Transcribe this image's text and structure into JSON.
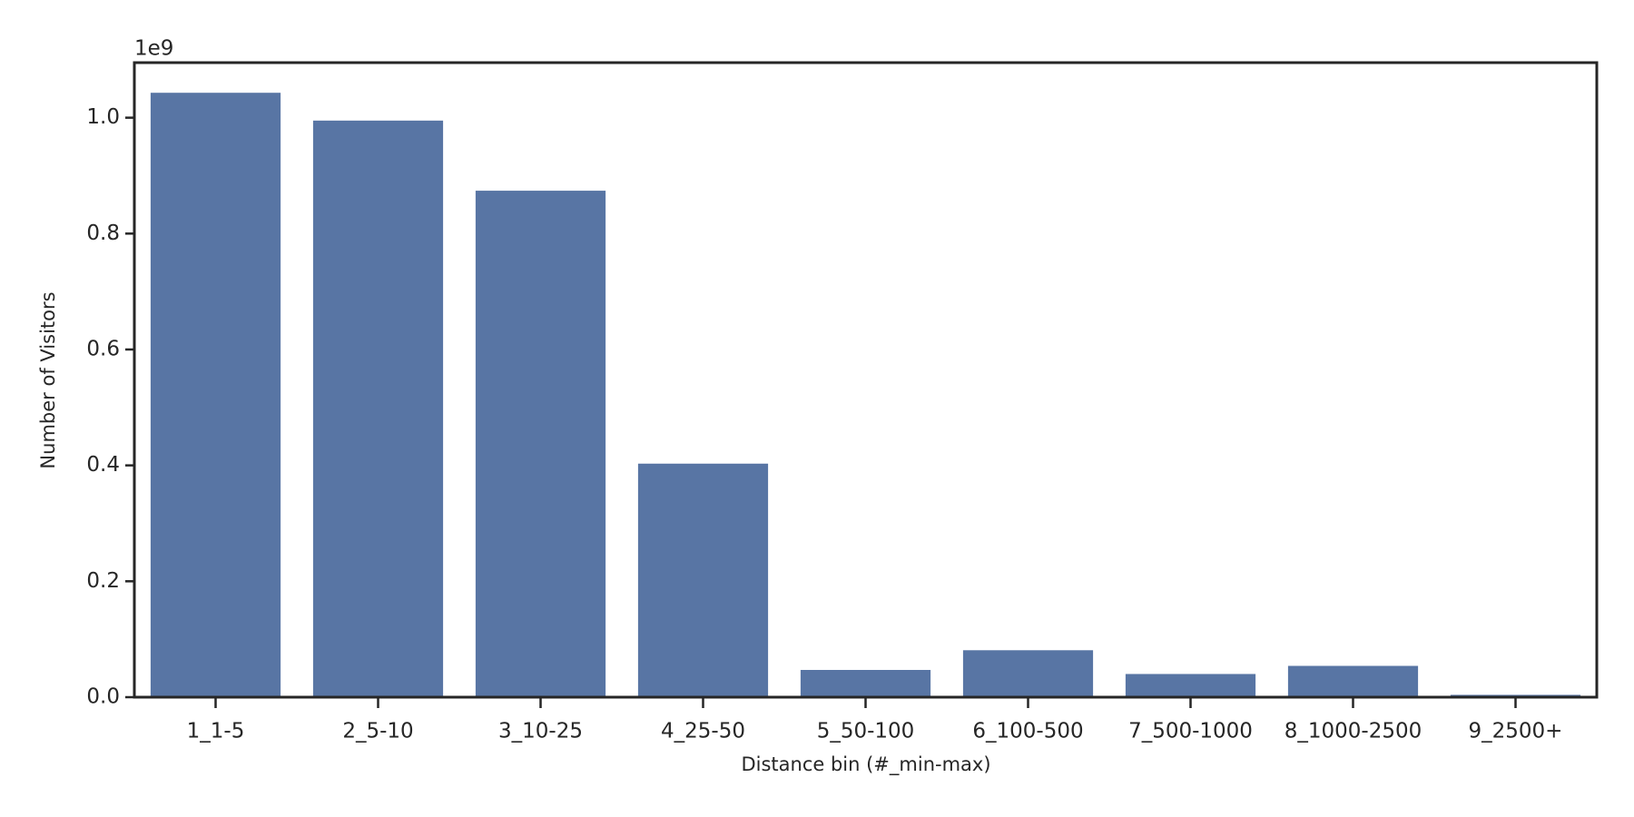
{
  "chart_data": {
    "type": "bar",
    "xlabel": "Distance bin (#_min-max)",
    "ylabel": "Number of Visitors",
    "y_offset_label": "1e9",
    "categories": [
      "1_1-5",
      "2_5-10",
      "3_10-25",
      "4_25-50",
      "5_50-100",
      "6_100-500",
      "7_500-1000",
      "8_1000-2500",
      "9_2500+"
    ],
    "values": [
      1.043,
      0.995,
      0.874,
      0.403,
      0.047,
      0.081,
      0.04,
      0.054,
      0.004
    ],
    "color": "#5875a4",
    "ylim": [
      0,
      1.095
    ],
    "yticks": [
      {
        "value": 0,
        "label": "0.0"
      },
      0.2,
      0.4,
      0.6,
      0.8,
      {
        "value": 1,
        "label": "1.0"
      }
    ],
    "grid": false
  }
}
